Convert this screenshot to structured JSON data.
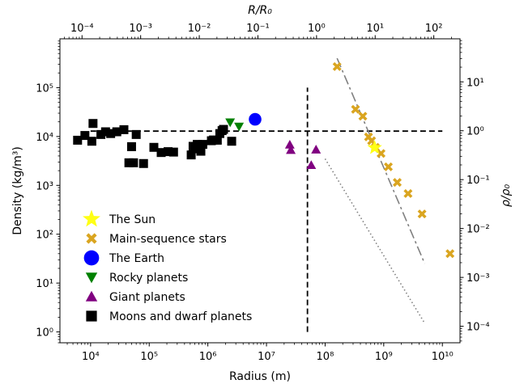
{
  "chart_data": {
    "type": "scatter",
    "xlabel": "Radius (m)",
    "ylabel": "Density (kg/m³)",
    "top_axis_label": "R/R₀",
    "right_axis_label": "ρ/ρ₀",
    "x_scale": "log",
    "y_scale": "log",
    "xlim": [
      3000.0,
      20000000000.0
    ],
    "ylim": [
      0.6,
      1000000.0
    ],
    "top_xlim": [
      4.2e-05,
      280.0
    ],
    "right_ylim": [
      4.6e-05,
      76
    ],
    "x_ticks": [
      {
        "value": 10000.0,
        "label": "10⁴"
      },
      {
        "value": 100000.0,
        "label": "10⁵"
      },
      {
        "value": 1000000.0,
        "label": "10⁶"
      },
      {
        "value": 10000000.0,
        "label": "10⁷"
      },
      {
        "value": 100000000.0,
        "label": "10⁸"
      },
      {
        "value": 1000000000.0,
        "label": "10⁹"
      },
      {
        "value": 10000000000.0,
        "label": "10¹⁰"
      }
    ],
    "y_ticks": [
      {
        "value": 1,
        "label": "10⁰"
      },
      {
        "value": 10,
        "label": "10¹"
      },
      {
        "value": 100,
        "label": "10²"
      },
      {
        "value": 1000,
        "label": "10³"
      },
      {
        "value": 10000,
        "label": "10⁴"
      },
      {
        "value": 100000,
        "label": "10⁵"
      }
    ],
    "top_ticks": [
      {
        "value": 0.0001,
        "label": "10⁻⁴"
      },
      {
        "value": 0.001,
        "label": "10⁻³"
      },
      {
        "value": 0.01,
        "label": "10⁻²"
      },
      {
        "value": 0.1,
        "label": "10⁻¹"
      },
      {
        "value": 1,
        "label": "10⁰"
      },
      {
        "value": 10,
        "label": "10¹"
      },
      {
        "value": 100,
        "label": "10²"
      }
    ],
    "right_ticks": [
      {
        "value": 0.0001,
        "label": "10⁻⁴"
      },
      {
        "value": 0.001,
        "label": "10⁻³"
      },
      {
        "value": 0.01,
        "label": "10⁻²"
      },
      {
        "value": 0.1,
        "label": "10⁻¹"
      },
      {
        "value": 1,
        "label": "10⁰"
      },
      {
        "value": 10,
        "label": "10¹"
      }
    ],
    "legend_position": "lower-left",
    "series": [
      {
        "name": "The Sun",
        "marker": "star",
        "color": "#ffff14",
        "points": [
          [
            700000000.0,
            5900
          ]
        ]
      },
      {
        "name": "Main-sequence stars",
        "marker": "x",
        "color": "#daa520",
        "points": [
          [
            160000000.0,
            270000
          ],
          [
            330000000.0,
            36000
          ],
          [
            440000000.0,
            26000
          ],
          [
            550000000.0,
            9800
          ],
          [
            620000000.0,
            8200
          ],
          [
            720000000.0,
            6000
          ],
          [
            900000000.0,
            4500
          ],
          [
            1200000000.0,
            2400
          ],
          [
            1700000000.0,
            1150
          ],
          [
            2600000000.0,
            680
          ],
          [
            4500000000.0,
            260
          ],
          [
            13500000000.0,
            40
          ]
        ]
      },
      {
        "name": "The Earth",
        "marker": "circle",
        "color": "#0000ff",
        "points": [
          [
            6400000.0,
            22500
          ]
        ]
      },
      {
        "name": "Rocky planets",
        "marker": "triangle-down",
        "color": "#008000",
        "points": [
          [
            2400000.0,
            19500
          ],
          [
            3400000.0,
            16000
          ],
          [
            6100000.0,
            21000
          ]
        ]
      },
      {
        "name": "Giant planets",
        "marker": "triangle-up",
        "color": "#800080",
        "points": [
          [
            25000000.0,
            6800
          ],
          [
            26000000.0,
            5300
          ],
          [
            58000000.0,
            2600
          ],
          [
            70000000.0,
            5400
          ]
        ]
      },
      {
        "name": "Moons and dwarf planets",
        "marker": "square",
        "color": "#000000",
        "points": [
          [
            6000.0,
            8400
          ],
          [
            8000.0,
            10500
          ],
          [
            11000.0,
            18500
          ],
          [
            10500.0,
            8000
          ],
          [
            15000.0,
            11000
          ],
          [
            18000.0,
            12500
          ],
          [
            22000.0,
            11500
          ],
          [
            28000.0,
            12500
          ],
          [
            37000.0,
            13800
          ],
          [
            45000.0,
            2900
          ],
          [
            50000.0,
            6200
          ],
          [
            54000.0,
            2900
          ],
          [
            60000.0,
            11000
          ],
          [
            80000.0,
            2800
          ],
          [
            120000.0,
            6000
          ],
          [
            160000.0,
            4700
          ],
          [
            210000.0,
            4900
          ],
          [
            260000.0,
            4800
          ],
          [
            520000.0,
            4200
          ],
          [
            560000.0,
            6300
          ],
          [
            600000.0,
            5600
          ],
          [
            660000.0,
            6900
          ],
          [
            710000.0,
            6300
          ],
          [
            760000.0,
            5000
          ],
          [
            820000.0,
            6900
          ],
          [
            1150000.0,
            8200
          ],
          [
            1250000.0,
            8500
          ],
          [
            1450000.0,
            8400
          ],
          [
            1600000.0,
            11500
          ],
          [
            1750000.0,
            13200
          ],
          [
            1850000.0,
            14000
          ],
          [
            2550000.0,
            8000
          ]
        ]
      }
    ],
    "reference_lines": [
      {
        "style": "dashed",
        "color": "#000000",
        "x": [
          10000.0,
          10000000000.0
        ],
        "y": [
          12900,
          12900
        ]
      },
      {
        "style": "dashed",
        "color": "#000000",
        "x": [
          50000000.0,
          50000000.0
        ],
        "y": [
          1.0,
          100000
        ]
      },
      {
        "style": "dashdot",
        "color": "#808080",
        "x": [
          160000000.0,
          5000000000.0
        ],
        "y": [
          400000,
          25
        ]
      },
      {
        "style": "dotted",
        "color": "#808080",
        "x": [
          100000000.0,
          5000000000.0
        ],
        "y": [
          3500,
          1.5
        ]
      }
    ]
  }
}
